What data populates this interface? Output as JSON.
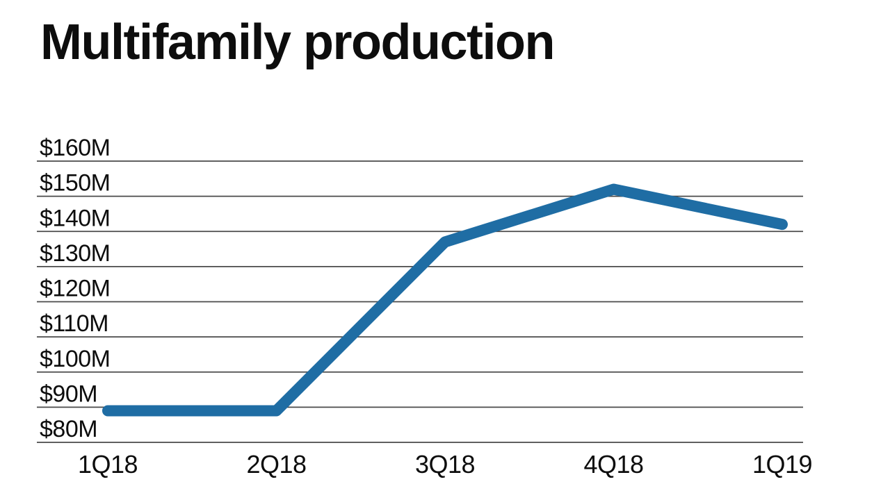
{
  "chart_data": {
    "type": "line",
    "title": "Multifamily production",
    "categories": [
      "1Q18",
      "2Q18",
      "3Q18",
      "4Q18",
      "1Q19"
    ],
    "series": [
      {
        "name": "Multifamily production",
        "values": [
          89,
          89,
          137,
          152,
          142
        ]
      }
    ],
    "unit": "$M",
    "xlabel": "",
    "ylabel": "",
    "ylim": [
      80,
      160
    ],
    "ytick_step": 10,
    "ytick_labels": [
      "$80M",
      "$90M",
      "$100M",
      "$110M",
      "$120M",
      "$130M",
      "$140M",
      "$150M",
      "$160M"
    ],
    "grid": true,
    "legend": false,
    "colors": {
      "line": "#1f6da4",
      "grid": "#4a4a4a",
      "text": "#0d0d0d",
      "background": "#ffffff"
    }
  }
}
